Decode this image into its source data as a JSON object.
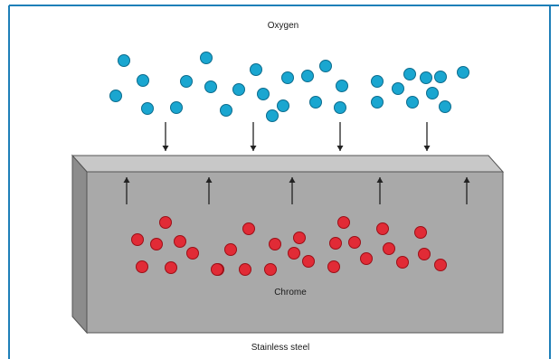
{
  "diagram": {
    "labels": {
      "top": "Oxygen",
      "middle": "Chrome",
      "bottom": "Stainless steel"
    },
    "colors": {
      "frame_border": "#1e7fb8",
      "oxygen_fill": "#1aa6d0",
      "oxygen_stroke": "#0c6c8d",
      "chrome_fill": "#e12b36",
      "chrome_stroke": "#9b0f17",
      "steel_front": "#a9a9a9",
      "steel_top": "#c8c8c8",
      "steel_side": "#8c8c8c",
      "arrow": "#222222"
    },
    "oxygen_atom_count": 30,
    "chrome_atom_count": 28,
    "downward_arrow_count": 4,
    "upward_arrow_count": 5
  }
}
